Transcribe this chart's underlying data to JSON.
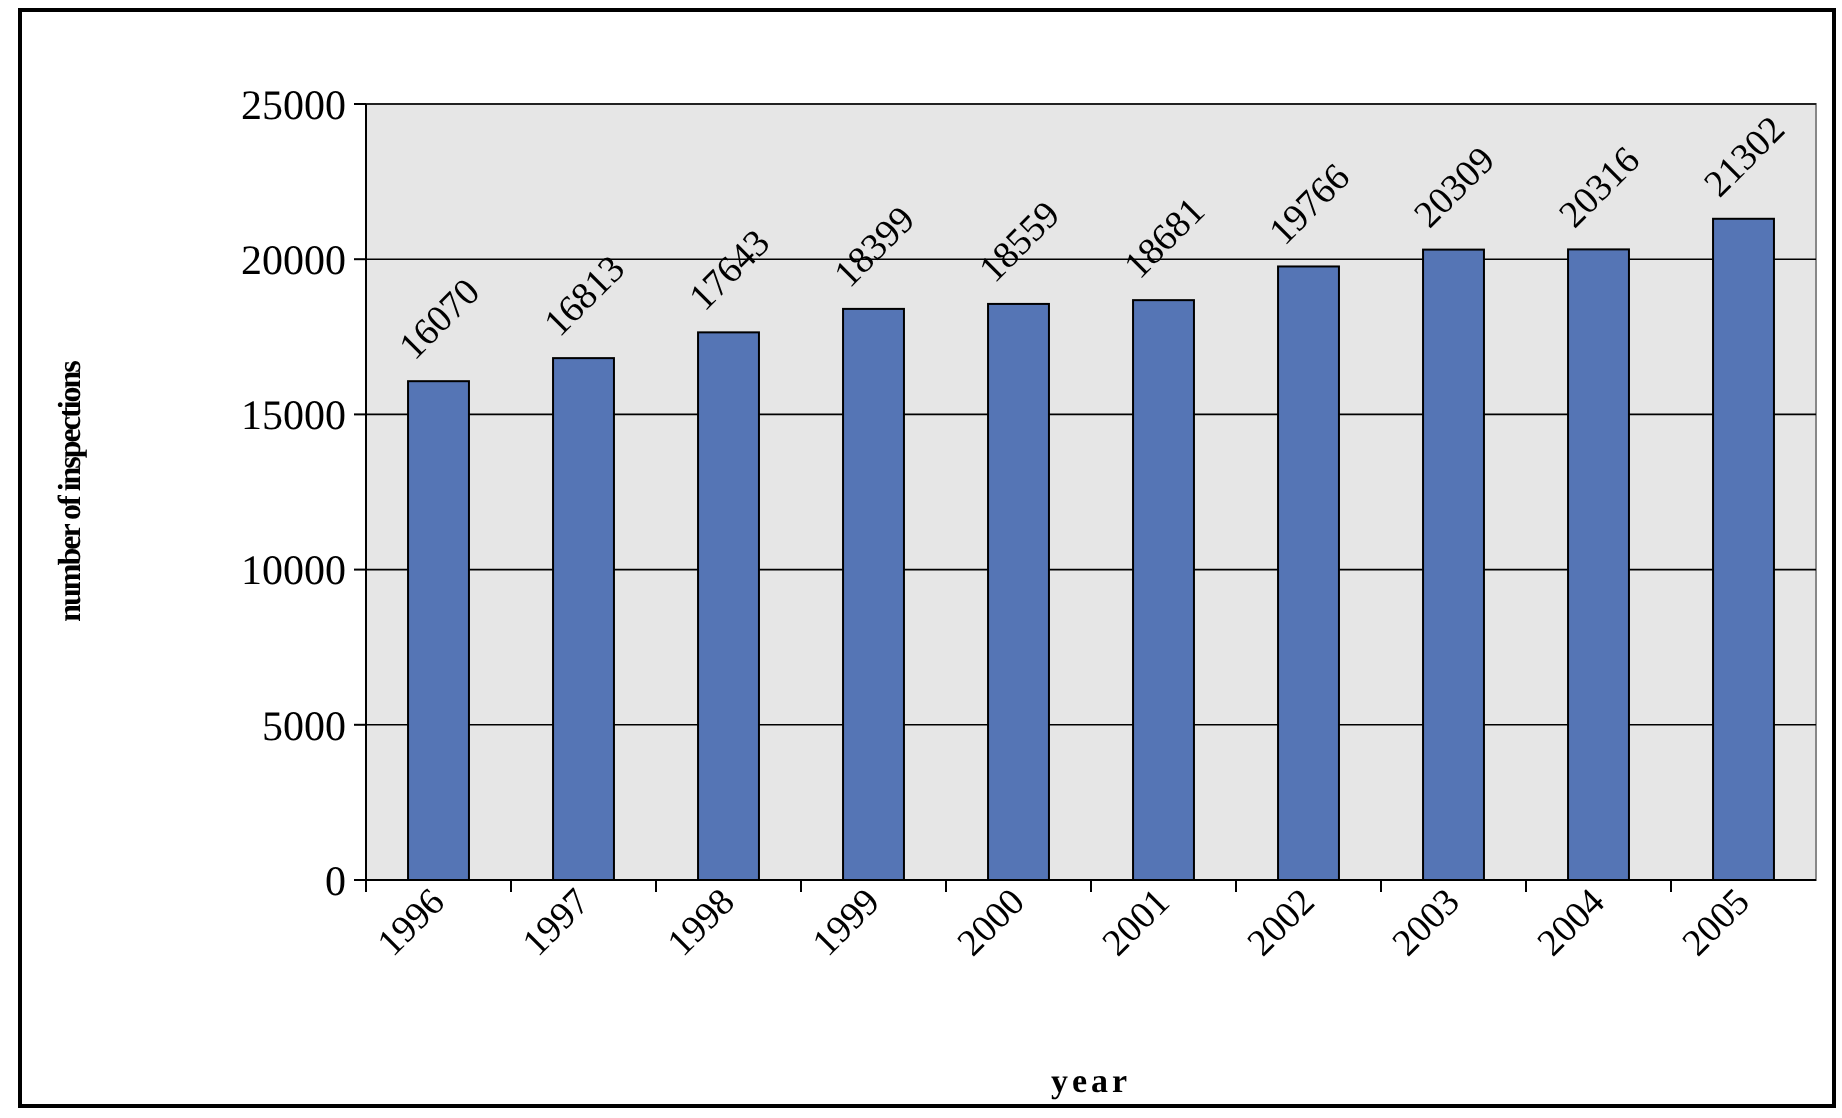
{
  "chart_data": {
    "type": "bar",
    "xlabel": "year",
    "ylabel": "number of inspections",
    "categories": [
      "1996",
      "1997",
      "1998",
      "1999",
      "2000",
      "2001",
      "2002",
      "2003",
      "2004",
      "2005"
    ],
    "values": [
      16070,
      16813,
      17643,
      18399,
      18559,
      18681,
      19766,
      20309,
      20316,
      21302
    ],
    "color": "#5575b5",
    "ylim": [
      0,
      25000
    ],
    "yticks": [
      0,
      5000,
      10000,
      15000,
      20000,
      25000
    ],
    "grid": "y",
    "data_labels": true
  }
}
